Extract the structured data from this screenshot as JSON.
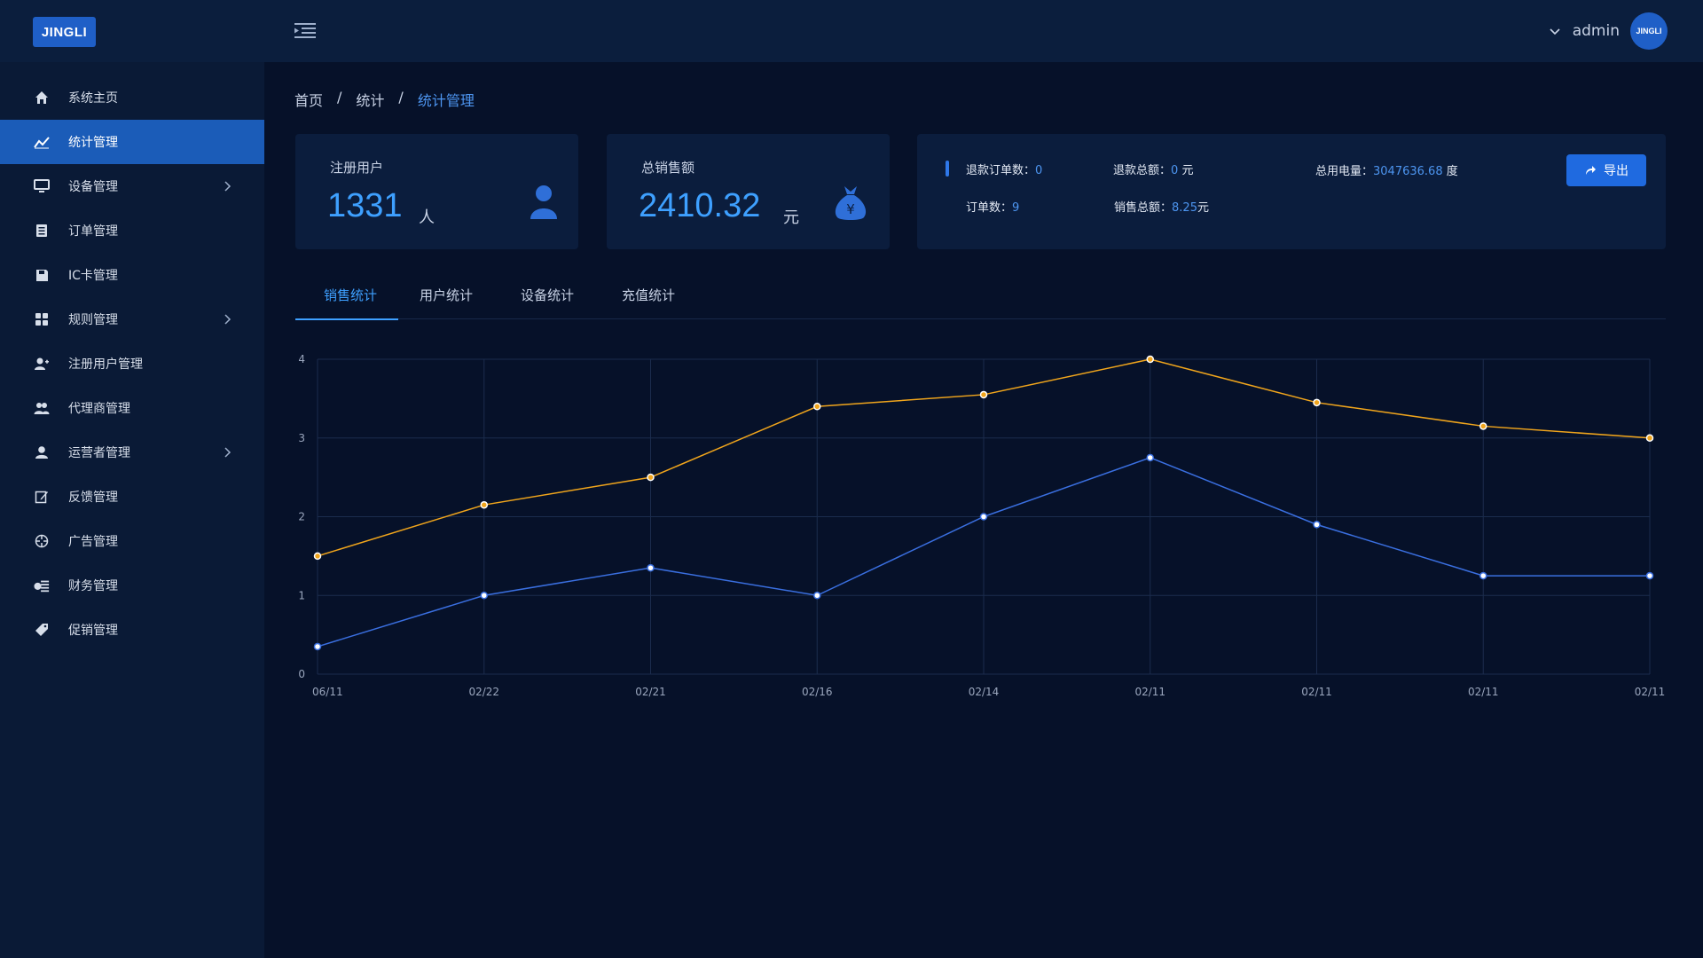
{
  "header": {
    "logo_text": "JINGLI",
    "username": "admin",
    "avatar_text": "JINGLI"
  },
  "sidebar": {
    "items": [
      {
        "label": "系统主页",
        "icon": "home-icon"
      },
      {
        "label": "统计管理",
        "icon": "chart-line-icon",
        "active": true
      },
      {
        "label": "设备管理",
        "icon": "monitor-icon",
        "has_children": true
      },
      {
        "label": "订单管理",
        "icon": "document-icon"
      },
      {
        "label": "IC卡管理",
        "icon": "save-card-icon"
      },
      {
        "label": "规则管理",
        "icon": "grid-icon",
        "has_children": true
      },
      {
        "label": "注册用户管理",
        "icon": "user-add-icon"
      },
      {
        "label": "代理商管理",
        "icon": "users-icon"
      },
      {
        "label": "运营者管理",
        "icon": "user-icon",
        "has_children": true
      },
      {
        "label": "反馈管理",
        "icon": "edit-icon"
      },
      {
        "label": "广告管理",
        "icon": "crosshair-icon"
      },
      {
        "label": "财务管理",
        "icon": "money-icon"
      },
      {
        "label": "促销管理",
        "icon": "tag-icon"
      }
    ]
  },
  "breadcrumb": {
    "items": [
      "首页",
      "统计",
      "统计管理"
    ],
    "separator": "/"
  },
  "cards": {
    "users": {
      "label": "注册用户",
      "value": "1331",
      "unit": "人"
    },
    "sales": {
      "label": "总销售额",
      "value": "2410.32",
      "unit": "元"
    },
    "stats": {
      "refund_orders_label": "退款订单数：",
      "refund_orders_value": "0",
      "refund_total_label": "退款总额：",
      "refund_total_value": "0",
      "refund_total_unit": "元",
      "power_label": "总用电量：",
      "power_value": "3047636.68",
      "power_unit": "度",
      "orders_label": "订单数：",
      "orders_value": "9",
      "sales_total_label": "销售总额：",
      "sales_total_value": "8.25",
      "sales_total_unit": "元",
      "export_label": "导出"
    }
  },
  "tabs": [
    {
      "label": "销售统计",
      "active": true
    },
    {
      "label": "用户统计"
    },
    {
      "label": "设备统计"
    },
    {
      "label": "充值统计"
    }
  ],
  "colors": {
    "accent": "#3ea0ff",
    "active_nav": "#1b5cb8",
    "series_orange": "#f0a51c",
    "series_blue": "#3a6fe0"
  },
  "chart_data": {
    "type": "line",
    "categories": [
      "06/11",
      "02/22",
      "02/21",
      "02/16",
      "02/14",
      "02/11",
      "02/11",
      "02/11",
      "02/11"
    ],
    "ylim": [
      0,
      4
    ],
    "yticks": [
      0,
      1,
      2,
      3,
      4
    ],
    "grid": true,
    "series": [
      {
        "color": "#f0a51c",
        "values": [
          1.5,
          2.15,
          2.5,
          3.4,
          3.55,
          4.0,
          3.45,
          3.15,
          3.0
        ]
      },
      {
        "color": "#3a6fe0",
        "values": [
          0.35,
          1.0,
          1.35,
          1.0,
          2.0,
          2.75,
          1.9,
          1.25,
          1.25
        ]
      }
    ]
  }
}
